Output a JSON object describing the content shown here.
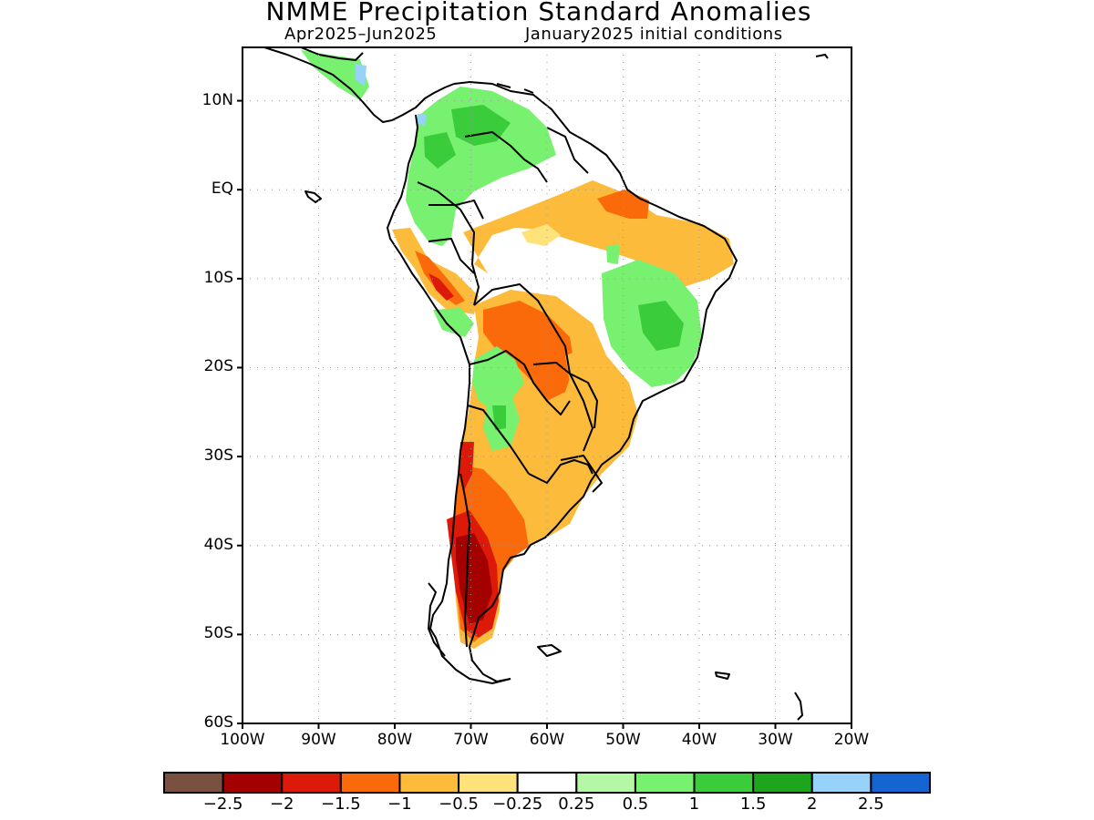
{
  "title": "NMME Precipitation Standard Anomalies",
  "subtitle_left": "Apr2025–Jun2025",
  "subtitle_right": "January2025 initial conditions",
  "yaxis": {
    "ticks": [
      {
        "lat": 10,
        "label": "10N"
      },
      {
        "lat": 0,
        "label": "EQ"
      },
      {
        "lat": -10,
        "label": "10S"
      },
      {
        "lat": -20,
        "label": "20S"
      },
      {
        "lat": -30,
        "label": "30S"
      },
      {
        "lat": -40,
        "label": "40S"
      },
      {
        "lat": -50,
        "label": "50S"
      },
      {
        "lat": -60,
        "label": "60S"
      }
    ]
  },
  "xaxis": {
    "ticks": [
      {
        "lon": -100,
        "label": "100W"
      },
      {
        "lon": -90,
        "label": "90W"
      },
      {
        "lon": -80,
        "label": "80W"
      },
      {
        "lon": -70,
        "label": "70W"
      },
      {
        "lon": -60,
        "label": "60W"
      },
      {
        "lon": -50,
        "label": "50W"
      },
      {
        "lon": -40,
        "label": "40W"
      },
      {
        "lon": -30,
        "label": "30W"
      },
      {
        "lon": -20,
        "label": "20W"
      }
    ]
  },
  "map_extent": {
    "lon": [
      -100,
      -20
    ],
    "lat": [
      -60,
      16
    ]
  },
  "colorbar": {
    "colors": [
      "#7a5040",
      "#a50000",
      "#dd1a0a",
      "#fa6a0a",
      "#fdbb3c",
      "#ffe37a",
      "#ffffff",
      "#b4f8a6",
      "#78f070",
      "#3acc3a",
      "#1ea51e",
      "#96d2fa",
      "#1464d2"
    ],
    "labels": [
      "−2.5",
      "−2",
      "−1.5",
      "−1",
      "−0.5",
      "−0.25",
      "0.25",
      "0.5",
      "1",
      "1.5",
      "2",
      "2.5"
    ]
  }
}
